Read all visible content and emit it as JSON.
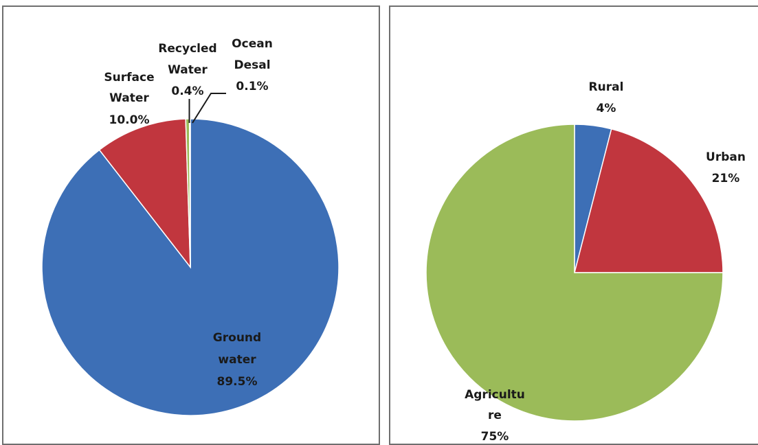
{
  "chart_data": [
    {
      "type": "pie",
      "start_angle_deg": 0,
      "direction": "clockwise",
      "slices": [
        {
          "label": [
            "Ground",
            "water",
            "89.5%"
          ],
          "value": 89.5,
          "color": "#3d6fb6"
        },
        {
          "label": [
            "Surface",
            "Water",
            "10.0%"
          ],
          "value": 10.0,
          "color": "#c1363e"
        },
        {
          "label": [
            "Recycled",
            "Water",
            "0.4%"
          ],
          "value": 0.4,
          "color": "#9bbb59"
        },
        {
          "label": [
            "Ocean",
            "Desal",
            "0.1%"
          ],
          "value": 0.1,
          "color": "#7f6aa6"
        }
      ]
    },
    {
      "type": "pie",
      "start_angle_deg": 0,
      "direction": "clockwise",
      "slices": [
        {
          "label": [
            "Rural",
            "4%"
          ],
          "value": 4,
          "color": "#3d6fb6"
        },
        {
          "label": [
            "Urban",
            "21%"
          ],
          "value": 21,
          "color": "#c1363e"
        },
        {
          "label": [
            "Agricultu",
            "re",
            "75%"
          ],
          "value": 75,
          "color": "#9bbb59"
        }
      ]
    }
  ]
}
